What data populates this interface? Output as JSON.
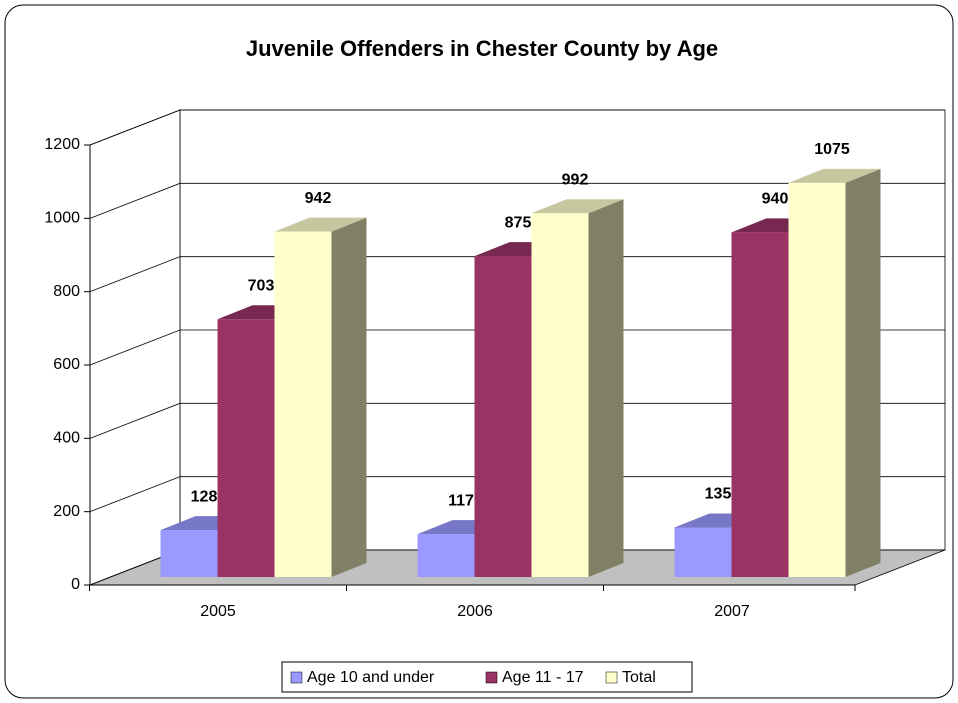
{
  "chart_data": {
    "type": "bar3d",
    "title": "Juvenile Offenders in Chester County by Age",
    "categories": [
      "2005",
      "2006",
      "2007"
    ],
    "series": [
      {
        "name": "Age 10 and under",
        "color": "#9999ff",
        "values": [
          128,
          117,
          135
        ]
      },
      {
        "name": "Age 11 - 17",
        "color": "#993366",
        "values": [
          703,
          875,
          940
        ]
      },
      {
        "name": "Total",
        "color": "#ffffcc",
        "values": [
          942,
          992,
          1075
        ]
      }
    ],
    "ylim": [
      0,
      1200
    ],
    "yticks": [
      0,
      200,
      400,
      600,
      800,
      1000,
      1200
    ],
    "grid": true,
    "legend": "bottom"
  }
}
